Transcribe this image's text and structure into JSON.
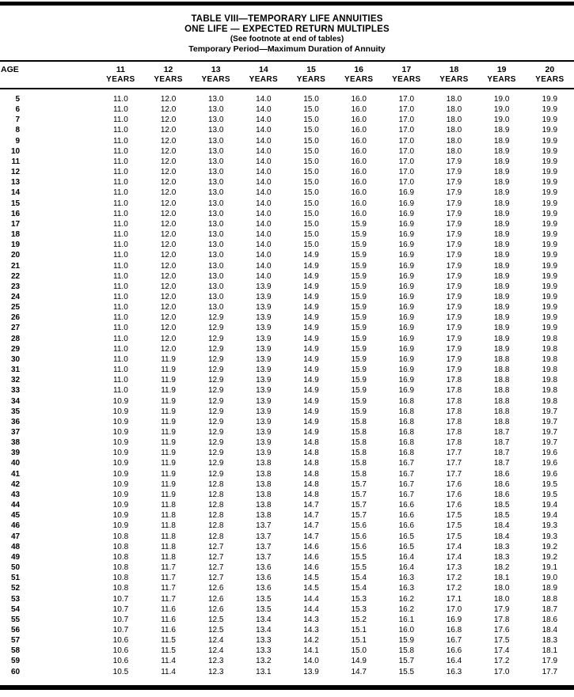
{
  "title": {
    "line1": "TABLE VIII—TEMPORARY LIFE ANNUITIES",
    "line2": "ONE LIFE — EXPECTED RETURN MULTIPLES",
    "line3": "(See footnote at end of tables)",
    "line4": "Temporary Period—Maximum Duration of Annuity"
  },
  "table": {
    "age_header": "AGE",
    "years_label": "YEARS",
    "year_columns": [
      "11",
      "12",
      "13",
      "14",
      "15",
      "16",
      "17",
      "18",
      "19",
      "20"
    ],
    "rows": [
      {
        "age": "5",
        "values": [
          "11.0",
          "12.0",
          "13.0",
          "14.0",
          "15.0",
          "16.0",
          "17.0",
          "18.0",
          "19.0",
          "19.9"
        ]
      },
      {
        "age": "6",
        "values": [
          "11.0",
          "12.0",
          "13.0",
          "14.0",
          "15.0",
          "16.0",
          "17.0",
          "18.0",
          "19.0",
          "19.9"
        ]
      },
      {
        "age": "7",
        "values": [
          "11.0",
          "12.0",
          "13.0",
          "14.0",
          "15.0",
          "16.0",
          "17.0",
          "18.0",
          "19.0",
          "19.9"
        ]
      },
      {
        "age": "8",
        "values": [
          "11.0",
          "12.0",
          "13.0",
          "14.0",
          "15.0",
          "16.0",
          "17.0",
          "18.0",
          "18.9",
          "19.9"
        ]
      },
      {
        "age": "9",
        "values": [
          "11.0",
          "12.0",
          "13.0",
          "14.0",
          "15.0",
          "16.0",
          "17.0",
          "18.0",
          "18.9",
          "19.9"
        ]
      },
      {
        "age": "10",
        "values": [
          "11.0",
          "12.0",
          "13.0",
          "14.0",
          "15.0",
          "16.0",
          "17.0",
          "18.0",
          "18.9",
          "19.9"
        ]
      },
      {
        "age": "11",
        "values": [
          "11.0",
          "12.0",
          "13.0",
          "14.0",
          "15.0",
          "16.0",
          "17.0",
          "17.9",
          "18.9",
          "19.9"
        ]
      },
      {
        "age": "12",
        "values": [
          "11.0",
          "12.0",
          "13.0",
          "14.0",
          "15.0",
          "16.0",
          "17.0",
          "17.9",
          "18.9",
          "19.9"
        ]
      },
      {
        "age": "13",
        "values": [
          "11.0",
          "12.0",
          "13.0",
          "14.0",
          "15.0",
          "16.0",
          "17.0",
          "17.9",
          "18.9",
          "19.9"
        ]
      },
      {
        "age": "14",
        "values": [
          "11.0",
          "12.0",
          "13.0",
          "14.0",
          "15.0",
          "16.0",
          "16.9",
          "17.9",
          "18.9",
          "19.9"
        ]
      },
      {
        "age": "15",
        "values": [
          "11.0",
          "12.0",
          "13.0",
          "14.0",
          "15.0",
          "16.0",
          "16.9",
          "17.9",
          "18.9",
          "19.9"
        ]
      },
      {
        "age": "16",
        "values": [
          "11.0",
          "12.0",
          "13.0",
          "14.0",
          "15.0",
          "16.0",
          "16.9",
          "17.9",
          "18.9",
          "19.9"
        ]
      },
      {
        "age": "17",
        "values": [
          "11.0",
          "12.0",
          "13.0",
          "14.0",
          "15.0",
          "15.9",
          "16.9",
          "17.9",
          "18.9",
          "19.9"
        ]
      },
      {
        "age": "18",
        "values": [
          "11.0",
          "12.0",
          "13.0",
          "14.0",
          "15.0",
          "15.9",
          "16.9",
          "17.9",
          "18.9",
          "19.9"
        ]
      },
      {
        "age": "19",
        "values": [
          "11.0",
          "12.0",
          "13.0",
          "14.0",
          "15.0",
          "15.9",
          "16.9",
          "17.9",
          "18.9",
          "19.9"
        ]
      },
      {
        "age": "20",
        "values": [
          "11.0",
          "12.0",
          "13.0",
          "14.0",
          "14.9",
          "15.9",
          "16.9",
          "17.9",
          "18.9",
          "19.9"
        ]
      },
      {
        "age": "21",
        "values": [
          "11.0",
          "12.0",
          "13.0",
          "14.0",
          "14.9",
          "15.9",
          "16.9",
          "17.9",
          "18.9",
          "19.9"
        ]
      },
      {
        "age": "22",
        "values": [
          "11.0",
          "12.0",
          "13.0",
          "14.0",
          "14.9",
          "15.9",
          "16.9",
          "17.9",
          "18.9",
          "19.9"
        ]
      },
      {
        "age": "23",
        "values": [
          "11.0",
          "12.0",
          "13.0",
          "13.9",
          "14.9",
          "15.9",
          "16.9",
          "17.9",
          "18.9",
          "19.9"
        ]
      },
      {
        "age": "24",
        "values": [
          "11.0",
          "12.0",
          "13.0",
          "13.9",
          "14.9",
          "15.9",
          "16.9",
          "17.9",
          "18.9",
          "19.9"
        ]
      },
      {
        "age": "25",
        "values": [
          "11.0",
          "12.0",
          "13.0",
          "13.9",
          "14.9",
          "15.9",
          "16.9",
          "17.9",
          "18.9",
          "19.9"
        ]
      },
      {
        "age": "26",
        "values": [
          "11.0",
          "12.0",
          "12.9",
          "13.9",
          "14.9",
          "15.9",
          "16.9",
          "17.9",
          "18.9",
          "19.9"
        ]
      },
      {
        "age": "27",
        "values": [
          "11.0",
          "12.0",
          "12.9",
          "13.9",
          "14.9",
          "15.9",
          "16.9",
          "17.9",
          "18.9",
          "19.9"
        ]
      },
      {
        "age": "28",
        "values": [
          "11.0",
          "12.0",
          "12.9",
          "13.9",
          "14.9",
          "15.9",
          "16.9",
          "17.9",
          "18.9",
          "19.8"
        ]
      },
      {
        "age": "29",
        "values": [
          "11.0",
          "12.0",
          "12.9",
          "13.9",
          "14.9",
          "15.9",
          "16.9",
          "17.9",
          "18.9",
          "19.8"
        ]
      },
      {
        "age": "30",
        "values": [
          "11.0",
          "11.9",
          "12.9",
          "13.9",
          "14.9",
          "15.9",
          "16.9",
          "17.9",
          "18.8",
          "19.8"
        ]
      },
      {
        "age": "31",
        "values": [
          "11.0",
          "11.9",
          "12.9",
          "13.9",
          "14.9",
          "15.9",
          "16.9",
          "17.9",
          "18.8",
          "19.8"
        ]
      },
      {
        "age": "32",
        "values": [
          "11.0",
          "11.9",
          "12.9",
          "13.9",
          "14.9",
          "15.9",
          "16.9",
          "17.8",
          "18.8",
          "19.8"
        ]
      },
      {
        "age": "33",
        "values": [
          "11.0",
          "11.9",
          "12.9",
          "13.9",
          "14.9",
          "15.9",
          "16.9",
          "17.8",
          "18.8",
          "19.8"
        ]
      },
      {
        "age": "34",
        "values": [
          "10.9",
          "11.9",
          "12.9",
          "13.9",
          "14.9",
          "15.9",
          "16.8",
          "17.8",
          "18.8",
          "19.8"
        ]
      },
      {
        "age": "35",
        "values": [
          "10.9",
          "11.9",
          "12.9",
          "13.9",
          "14.9",
          "15.9",
          "16.8",
          "17.8",
          "18.8",
          "19.7"
        ]
      },
      {
        "age": "36",
        "values": [
          "10.9",
          "11.9",
          "12.9",
          "13.9",
          "14.9",
          "15.8",
          "16.8",
          "17.8",
          "18.8",
          "19.7"
        ]
      },
      {
        "age": "37",
        "values": [
          "10.9",
          "11.9",
          "12.9",
          "13.9",
          "14.9",
          "15.8",
          "16.8",
          "17.8",
          "18.7",
          "19.7"
        ]
      },
      {
        "age": "38",
        "values": [
          "10.9",
          "11.9",
          "12.9",
          "13.9",
          "14.8",
          "15.8",
          "16.8",
          "17.8",
          "18.7",
          "19.7"
        ]
      },
      {
        "age": "39",
        "values": [
          "10.9",
          "11.9",
          "12.9",
          "13.9",
          "14.8",
          "15.8",
          "16.8",
          "17.7",
          "18.7",
          "19.6"
        ]
      },
      {
        "age": "40",
        "values": [
          "10.9",
          "11.9",
          "12.9",
          "13.8",
          "14.8",
          "15.8",
          "16.7",
          "17.7",
          "18.7",
          "19.6"
        ]
      },
      {
        "age": "41",
        "values": [
          "10.9",
          "11.9",
          "12.9",
          "13.8",
          "14.8",
          "15.8",
          "16.7",
          "17.7",
          "18.6",
          "19.6"
        ]
      },
      {
        "age": "42",
        "values": [
          "10.9",
          "11.9",
          "12.8",
          "13.8",
          "14.8",
          "15.7",
          "16.7",
          "17.6",
          "18.6",
          "19.5"
        ]
      },
      {
        "age": "43",
        "values": [
          "10.9",
          "11.9",
          "12.8",
          "13.8",
          "14.8",
          "15.7",
          "16.7",
          "17.6",
          "18.6",
          "19.5"
        ]
      },
      {
        "age": "44",
        "values": [
          "10.9",
          "11.8",
          "12.8",
          "13.8",
          "14.7",
          "15.7",
          "16.6",
          "17.6",
          "18.5",
          "19.4"
        ]
      },
      {
        "age": "45",
        "values": [
          "10.9",
          "11.8",
          "12.8",
          "13.8",
          "14.7",
          "15.7",
          "16.6",
          "17.5",
          "18.5",
          "19.4"
        ]
      },
      {
        "age": "46",
        "values": [
          "10.9",
          "11.8",
          "12.8",
          "13.7",
          "14.7",
          "15.6",
          "16.6",
          "17.5",
          "18.4",
          "19.3"
        ]
      },
      {
        "age": "47",
        "values": [
          "10.8",
          "11.8",
          "12.8",
          "13.7",
          "14.7",
          "15.6",
          "16.5",
          "17.5",
          "18.4",
          "19.3"
        ]
      },
      {
        "age": "48",
        "values": [
          "10.8",
          "11.8",
          "12.7",
          "13.7",
          "14.6",
          "15.6",
          "16.5",
          "17.4",
          "18.3",
          "19.2"
        ]
      },
      {
        "age": "49",
        "values": [
          "10.8",
          "11.8",
          "12.7",
          "13.7",
          "14.6",
          "15.5",
          "16.4",
          "17.4",
          "18.3",
          "19.2"
        ]
      },
      {
        "age": "50",
        "values": [
          "10.8",
          "11.7",
          "12.7",
          "13.6",
          "14.6",
          "15.5",
          "16.4",
          "17.3",
          "18.2",
          "19.1"
        ]
      },
      {
        "age": "51",
        "values": [
          "10.8",
          "11.7",
          "12.7",
          "13.6",
          "14.5",
          "15.4",
          "16.3",
          "17.2",
          "18.1",
          "19.0"
        ]
      },
      {
        "age": "52",
        "values": [
          "10.8",
          "11.7",
          "12.6",
          "13.6",
          "14.5",
          "15.4",
          "16.3",
          "17.2",
          "18.0",
          "18.9"
        ]
      },
      {
        "age": "53",
        "values": [
          "10.7",
          "11.7",
          "12.6",
          "13.5",
          "14.4",
          "15.3",
          "16.2",
          "17.1",
          "18.0",
          "18.8"
        ]
      },
      {
        "age": "54",
        "values": [
          "10.7",
          "11.6",
          "12.6",
          "13.5",
          "14.4",
          "15.3",
          "16.2",
          "17.0",
          "17.9",
          "18.7"
        ]
      },
      {
        "age": "55",
        "values": [
          "10.7",
          "11.6",
          "12.5",
          "13.4",
          "14.3",
          "15.2",
          "16.1",
          "16.9",
          "17.8",
          "18.6"
        ]
      },
      {
        "age": "56",
        "values": [
          "10.7",
          "11.6",
          "12.5",
          "13.4",
          "14.3",
          "15.1",
          "16.0",
          "16.8",
          "17.6",
          "18.4"
        ]
      },
      {
        "age": "57",
        "values": [
          "10.6",
          "11.5",
          "12.4",
          "13.3",
          "14.2",
          "15.1",
          "15.9",
          "16.7",
          "17.5",
          "18.3"
        ]
      },
      {
        "age": "58",
        "values": [
          "10.6",
          "11.5",
          "12.4",
          "13.3",
          "14.1",
          "15.0",
          "15.8",
          "16.6",
          "17.4",
          "18.1"
        ]
      },
      {
        "age": "59",
        "values": [
          "10.6",
          "11.4",
          "12.3",
          "13.2",
          "14.0",
          "14.9",
          "15.7",
          "16.4",
          "17.2",
          "17.9"
        ]
      },
      {
        "age": "60",
        "values": [
          "10.5",
          "11.4",
          "12.3",
          "13.1",
          "13.9",
          "14.7",
          "15.5",
          "16.3",
          "17.0",
          "17.7"
        ]
      }
    ]
  }
}
